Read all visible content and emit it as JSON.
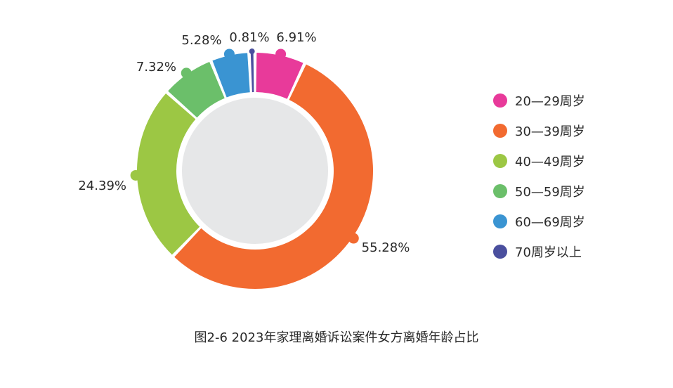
{
  "chart_data": {
    "type": "pie",
    "title": "图2-6  2023年家理离婚诉讼案件女方离婚年龄占比",
    "categories": [
      "20—29周岁",
      "30—39周岁",
      "40—49周岁",
      "50—59周岁",
      "60—69周岁",
      "70周岁以上"
    ],
    "values": [
      6.91,
      55.28,
      24.39,
      7.32,
      5.28,
      0.81
    ],
    "labels": [
      "6.91%",
      "55.28%",
      "24.39%",
      "7.32%",
      "5.28%",
      "0.81%"
    ],
    "colors": [
      "#e83a9a",
      "#f26a30",
      "#9cc744",
      "#6bbf6a",
      "#3a94d2",
      "#4a4f9e"
    ],
    "center_color": "#e6e7e8",
    "legend_position": "right"
  }
}
